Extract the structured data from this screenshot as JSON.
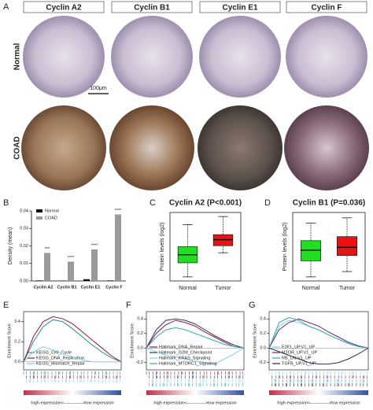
{
  "figure": {
    "panel": "A",
    "columns": [
      "Cyclin A2",
      "Cyclin B1",
      "Cyclin E1",
      "Cyclin F"
    ],
    "rows": [
      "Normal",
      "COAD"
    ],
    "scale_bar": "100μm"
  },
  "chart_data": [
    {
      "type": "bar",
      "panel": "B",
      "ylabel": "Density (mean)",
      "categories": [
        "Cyclin A2",
        "Cyclin B1",
        "Cyclin E1",
        "Cyclin F"
      ],
      "series": [
        {
          "name": "Normal",
          "color": "#111111",
          "values": [
            0.0003,
            0.0002,
            0.001,
            0.0003
          ]
        },
        {
          "name": "COAD",
          "color": "#9a9a9a",
          "values": [
            0.016,
            0.011,
            0.018,
            0.038
          ]
        }
      ],
      "annotations": [
        "***",
        "****",
        "****",
        "****"
      ],
      "ylim": [
        0,
        0.04
      ],
      "yticks": [
        {
          "value": 0,
          "label": "0.00"
        },
        0.01,
        0.02,
        0.03,
        {
          "value": 0.04,
          "label": "0.04"
        }
      ],
      "legend": "top-left"
    },
    {
      "type": "box",
      "panel": "C",
      "title": "Cyclin A2 (P<0.001)",
      "ylabel": "Protein levels (log2)",
      "categories": [
        "Normal",
        "Tumor"
      ],
      "boxes": [
        {
          "color": "#22dd22",
          "low": -1.5,
          "q1": -0.8,
          "median": -0.4,
          "q3": 0,
          "high": 1.1
        },
        {
          "color": "#ee1111",
          "low": -0.3,
          "q1": 0.05,
          "median": 0.35,
          "q3": 0.6,
          "high": 1.5
        }
      ],
      "ylim": [
        -1.7,
        1.7
      ]
    },
    {
      "type": "box",
      "panel": "D",
      "title": "Cyclin B1 (P=0.036)",
      "ylabel": "Protein levels (log2)",
      "categories": [
        "Normal",
        "Tumor"
      ],
      "boxes": [
        {
          "color": "#22dd22",
          "low": -1.0,
          "q1": -0.4,
          "median": 0,
          "q3": 0.35,
          "high": 1.0
        },
        {
          "color": "#ee1111",
          "low": -0.8,
          "q1": -0.2,
          "median": 0.1,
          "q3": 0.5,
          "high": 1.2
        }
      ],
      "ylim": [
        -1.15,
        1.4
      ]
    },
    {
      "type": "line",
      "panel": "E",
      "ylabel": "Enrichment Score",
      "xlabel": "high expression<------------->low expression",
      "x": [
        0,
        10,
        20,
        30,
        40,
        50,
        60,
        70,
        80,
        90,
        100
      ],
      "series": [
        {
          "name": "KEGG_Cell_Cycle",
          "color": "#2b8a96",
          "values": [
            0,
            0.2,
            0.35,
            0.42,
            0.4,
            0.33,
            0.25,
            0.17,
            0.1,
            0.04,
            0
          ]
        },
        {
          "name": "KEGG_DNA_Replication",
          "color": "#8b1a3a",
          "values": [
            0,
            0.25,
            0.4,
            0.45,
            0.43,
            0.38,
            0.3,
            0.22,
            0.14,
            0.06,
            0
          ]
        },
        {
          "name": "KEGG_Mismatch_Repair",
          "color": "#7fd3e0",
          "values": [
            0,
            0.1,
            0.15,
            0.12,
            0.08,
            0.05,
            0.02,
            0,
            0,
            0,
            0
          ]
        }
      ],
      "xlim": [
        0,
        100
      ],
      "ylim": [
        -0.08,
        0.5
      ],
      "yticks": [
        0.4,
        0.2,
        {
          "value": 0,
          "label": "0.0"
        }
      ]
    },
    {
      "type": "line",
      "panel": "F",
      "ylabel": "Enrichment Score",
      "xlabel": "high expression<------------->low expression",
      "x": [
        0,
        10,
        20,
        30,
        40,
        50,
        60,
        70,
        80,
        90,
        100
      ],
      "series": [
        {
          "name": "Hallmark_DNA_Repair",
          "color": "#8b1a3a",
          "values": [
            0,
            0.2,
            0.32,
            0.38,
            0.35,
            0.3,
            0.22,
            0.15,
            0.08,
            0.02,
            0
          ]
        },
        {
          "name": "Hallmark_G2M_Checkpoint",
          "color": "#2b2f6e",
          "values": [
            0,
            0.25,
            0.38,
            0.4,
            0.38,
            0.33,
            0.25,
            0.17,
            0.1,
            0.04,
            0
          ]
        },
        {
          "name": "Hallmark_KRAS_Signaling",
          "color": "#7fd3e0",
          "values": [
            0,
            -0.05,
            -0.1,
            -0.12,
            -0.15,
            -0.18,
            -0.2,
            -0.22,
            -0.15,
            -0.08,
            0
          ]
        },
        {
          "name": "Hallmark_MTORC1_Signaling",
          "color": "#3aa6b0",
          "values": [
            0,
            0.15,
            0.25,
            0.28,
            0.25,
            0.2,
            0.15,
            0.1,
            0.05,
            0.02,
            0
          ]
        }
      ],
      "xlim": [
        0,
        100
      ],
      "ylim": [
        -0.3,
        0.5
      ],
      "yticks": [
        0.4,
        0.2,
        {
          "value": 0,
          "label": "0.0"
        },
        -0.2
      ]
    },
    {
      "type": "line",
      "panel": "G",
      "ylabel": "Enrichment Score",
      "xlabel": "high expression<------------->low expression",
      "x": [
        0,
        10,
        20,
        30,
        40,
        50,
        60,
        70,
        80,
        90,
        100
      ],
      "series": [
        {
          "name": "E2F1_UP.V1_UP",
          "color": "#7fd3e0",
          "values": [
            0,
            0.3,
            0.38,
            0.35,
            0.3,
            0.25,
            0.18,
            0.12,
            0.07,
            0.03,
            0
          ]
        },
        {
          "name": "MTOR_UP.V1_UP",
          "color": "#6a2c70",
          "values": [
            0,
            0.25,
            0.35,
            0.4,
            0.35,
            0.3,
            0.22,
            0.15,
            0.08,
            0.03,
            0
          ]
        },
        {
          "name": "RB_DN.V1_UP",
          "color": "#3aa6b0",
          "values": [
            0,
            0.35,
            0.42,
            0.38,
            0.3,
            0.25,
            0.18,
            0.12,
            0.06,
            0.02,
            0
          ]
        },
        {
          "name": "TGFB_UP.V1_UP",
          "color": "#2b2b4e",
          "values": [
            0,
            -0.05,
            -0.1,
            -0.15,
            -0.2,
            -0.22,
            -0.22,
            -0.2,
            -0.15,
            -0.08,
            0
          ]
        }
      ],
      "xlim": [
        0,
        100
      ],
      "ylim": [
        -0.3,
        0.5
      ],
      "yticks": [
        0.4,
        0.2,
        {
          "value": 0,
          "label": "0.0"
        },
        -0.2
      ]
    }
  ]
}
